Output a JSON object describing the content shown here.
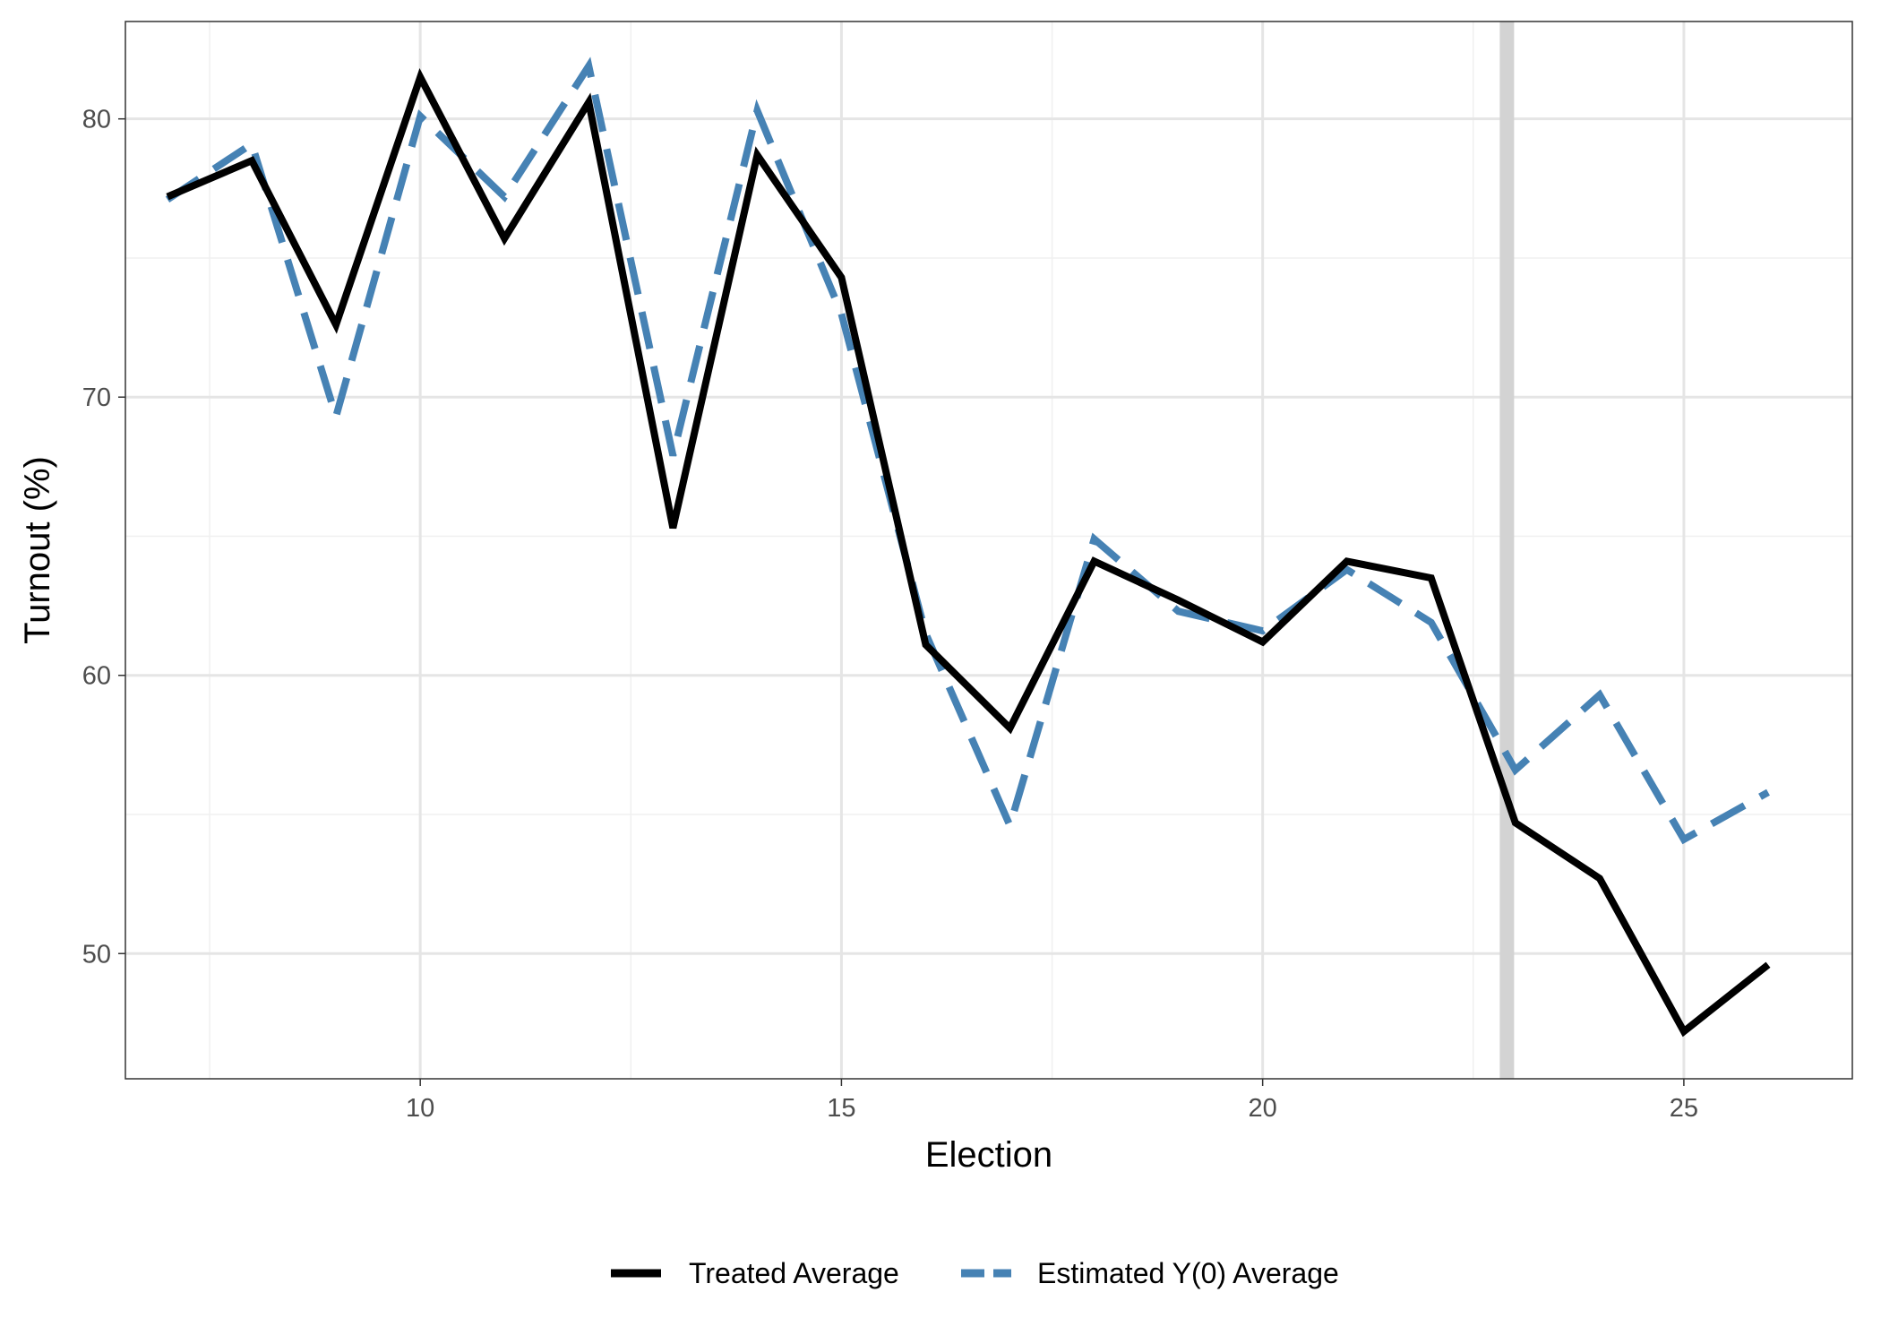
{
  "chart_data": {
    "type": "line",
    "xlabel": "Election",
    "ylabel": "Turnout (%)",
    "xlim": [
      6.5,
      27.0
    ],
    "ylim": [
      45.5,
      83.5
    ],
    "x_ticks": [
      10,
      15,
      20,
      25
    ],
    "x_minor_ticks": [
      7.5,
      12.5,
      17.5,
      22.5
    ],
    "y_ticks": [
      50,
      60,
      70,
      80
    ],
    "y_minor_ticks": [
      55,
      65,
      75
    ],
    "grid": true,
    "legend_position": "bottom",
    "treatment_marker_x": 22.9,
    "x": [
      7,
      8,
      9,
      10,
      11,
      12,
      13,
      14,
      15,
      16,
      17,
      18,
      19,
      20,
      21,
      22,
      23,
      24,
      25,
      26
    ],
    "series": [
      {
        "name": "Treated Average",
        "color": "#000000",
        "style": "solid",
        "values": [
          77.2,
          78.5,
          72.6,
          81.5,
          75.7,
          80.6,
          65.3,
          78.7,
          74.3,
          61.1,
          58.1,
          64.1,
          62.7,
          61.2,
          64.1,
          63.5,
          54.7,
          52.7,
          47.2,
          49.6
        ]
      },
      {
        "name": "Estimated Y(0) Average",
        "color": "#4682B4",
        "style": "dashed",
        "values": [
          77.1,
          79.1,
          69.3,
          80.1,
          77.2,
          81.9,
          67.9,
          80.3,
          73.0,
          61.5,
          54.6,
          64.9,
          62.3,
          61.6,
          63.8,
          61.9,
          56.6,
          59.3,
          54.1,
          55.8
        ]
      }
    ]
  }
}
